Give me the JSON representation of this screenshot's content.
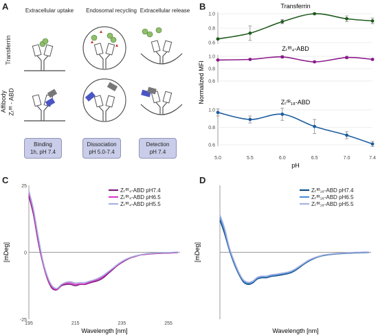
{
  "panel_a": {
    "label": "A",
    "col_headers": [
      "Extracellular uptake",
      "Endosomal recycling",
      "Extracellular release"
    ],
    "row_labels": {
      "transferrin": "Transferrin",
      "affibody_line1": "Affibody",
      "affibody_line2": "Zₜᶠᴿ - ABD"
    },
    "steps": [
      {
        "l1": "Binding",
        "l2": "1h, pH 7.4"
      },
      {
        "l1": "Dissociation",
        "l2": "pH 5.0-7.4"
      },
      {
        "l1": "Detection",
        "l2": "pH 7.4"
      }
    ],
    "colors": {
      "step_fill": "#c9cde9",
      "green_ball": "#8fbf6a",
      "protein_blue": "#4b55c4",
      "red_triangle": "#c0392b"
    }
  },
  "panel_b": {
    "label": "B"
  },
  "panel_c": {
    "label": "C"
  },
  "panel_d": {
    "label": "D"
  },
  "chart_data": [
    {
      "panel": "B",
      "type": "line",
      "ylabel": "Normalized MFI",
      "xlabel": "pH",
      "x_ticks": [
        "5.0",
        "5.5",
        "6.0",
        "6.5",
        "7.0",
        "7.4"
      ],
      "subplots": [
        {
          "title": "Transferrin",
          "color": "#1e5a1e",
          "x": [
            5.0,
            5.5,
            6.0,
            6.5,
            7.0,
            7.4
          ],
          "y": [
            0.65,
            0.73,
            0.89,
            1.0,
            0.93,
            0.9
          ],
          "err": [
            0.01,
            0.1,
            0.03,
            0.01,
            0.04,
            0.04
          ],
          "ylim": [
            0.6,
            1.0
          ],
          "y_ticks": [
            "1.0",
            "0.8",
            "0.6"
          ]
        },
        {
          "title": "Zₜᶠᴿ₄-ABD",
          "color": "#8b1a8b",
          "x": [
            5.0,
            5.5,
            6.0,
            6.5,
            7.0,
            7.4
          ],
          "y": [
            0.94,
            0.95,
            0.99,
            0.91,
            0.98,
            0.95
          ],
          "err": [
            0.01,
            0.01,
            0.02,
            0.01,
            0.02,
            0.01
          ],
          "ylim": [
            0.6,
            1.0
          ],
          "y_ticks": [
            "1.0",
            "0.8",
            "0.6"
          ]
        },
        {
          "title": "Zₜᶠᴿ₁₈-ABD",
          "color": "#1d5c9e",
          "x": [
            5.0,
            5.5,
            6.0,
            6.5,
            7.0,
            7.4
          ],
          "y": [
            0.97,
            0.89,
            0.95,
            0.81,
            0.71,
            0.61
          ],
          "err": [
            0.04,
            0.04,
            0.07,
            0.08,
            0.04,
            0.03
          ],
          "ylim": [
            0.6,
            1.0
          ],
          "y_ticks": [
            "1.0",
            "0.8",
            "0.6"
          ]
        }
      ]
    },
    {
      "panel": "C",
      "type": "line",
      "xlabel": "Wavelength [nm]",
      "ylabel": "[mDeg]",
      "xlim": [
        195,
        260
      ],
      "ylim": [
        -25,
        25
      ],
      "x_ticks": [
        "195",
        "215",
        "235",
        "255"
      ],
      "y_ticks": [
        "25",
        "0",
        "-25"
      ],
      "x": [
        195,
        197,
        199,
        201,
        203,
        205,
        207,
        209,
        211,
        213,
        215,
        217,
        219,
        221,
        223,
        225,
        227,
        229,
        231,
        233,
        235,
        237,
        239,
        241,
        243,
        245,
        247,
        249,
        251,
        253,
        255,
        257,
        259
      ],
      "series": [
        {
          "name": "Zₜᶠᴿ₄-ABD pH7.4",
          "color": "#7a1a7a",
          "values": [
            21,
            14,
            4,
            -4,
            -10,
            -13.5,
            -14,
            -12.5,
            -12,
            -12,
            -12.5,
            -12,
            -12,
            -11.5,
            -11,
            -10.5,
            -9.5,
            -8,
            -6.5,
            -5,
            -3.8,
            -2.8,
            -2,
            -1.5,
            -1,
            -0.8,
            -0.6,
            -0.5,
            -0.4,
            -0.3,
            -0.3,
            -0.2,
            -0.1
          ]
        },
        {
          "name": "Zₜᶠᴿ₄-ABD pH6.5",
          "color": "#d63cc7",
          "values": [
            22,
            15,
            5,
            -3.5,
            -9.5,
            -13,
            -13.8,
            -12.2,
            -11.6,
            -11.5,
            -12,
            -11.8,
            -11.8,
            -11.2,
            -10.6,
            -10,
            -9,
            -7.6,
            -6.2,
            -4.8,
            -3.6,
            -2.6,
            -1.9,
            -1.4,
            -1,
            -0.7,
            -0.5,
            -0.4,
            -0.3,
            -0.2,
            -0.2,
            -0.1,
            0
          ]
        },
        {
          "name": "Zₜᶠᴿ₄-ABD pH5.5",
          "color": "#a8b0e0",
          "values": [
            23,
            16,
            6,
            -3,
            -9,
            -12.5,
            -13.5,
            -12,
            -11.2,
            -11,
            -11.5,
            -11.3,
            -11.3,
            -10.8,
            -10.3,
            -9.6,
            -8.6,
            -7.3,
            -6,
            -4.6,
            -3.4,
            -2.5,
            -1.8,
            -1.3,
            -0.9,
            -0.6,
            -0.4,
            -0.3,
            -0.2,
            -0.1,
            -0.1,
            0,
            0.1
          ]
        }
      ]
    },
    {
      "panel": "D",
      "type": "line",
      "xlabel": "Wavelength [nm]",
      "ylabel": "[mDeg]",
      "xlim": [
        195,
        260
      ],
      "ylim": [
        -25,
        25
      ],
      "x": [
        195,
        197,
        199,
        201,
        203,
        205,
        207,
        209,
        211,
        213,
        215,
        217,
        219,
        221,
        223,
        225,
        227,
        229,
        231,
        233,
        235,
        237,
        239,
        241,
        243,
        245,
        247,
        249,
        251,
        253,
        255,
        257,
        259
      ],
      "series": [
        {
          "name": "Zₜᶠᴿ₁₈-ABD pH7.4",
          "color": "#0f4c81",
          "values": [
            12,
            7,
            1,
            -4,
            -8,
            -11,
            -12,
            -11.5,
            -10,
            -9.5,
            -9.5,
            -9,
            -8.8,
            -8.5,
            -8.2,
            -7.8,
            -7,
            -5.8,
            -4.5,
            -3.4,
            -2.5,
            -1.8,
            -1.3,
            -1,
            -0.8,
            -0.6,
            -0.5,
            -0.4,
            -0.3,
            -0.2,
            -0.2,
            -0.1,
            -0.1
          ]
        },
        {
          "name": "Zₜᶠᴿ₁₈-ABD pH6.5",
          "color": "#4b8fd6",
          "values": [
            13,
            8,
            1.5,
            -3.5,
            -7.6,
            -10.6,
            -11.6,
            -11.2,
            -9.7,
            -9.2,
            -9.2,
            -8.7,
            -8.5,
            -8.2,
            -7.9,
            -7.5,
            -6.7,
            -5.5,
            -4.3,
            -3.2,
            -2.3,
            -1.7,
            -1.2,
            -0.9,
            -0.7,
            -0.5,
            -0.4,
            -0.3,
            -0.2,
            -0.1,
            -0.1,
            0,
            0
          ]
        },
        {
          "name": "Zₜᶠᴿ₁₈-ABD pH5.5",
          "color": "#a8b0e0",
          "values": [
            14,
            9,
            2,
            -3,
            -7.2,
            -10.2,
            -11.2,
            -10.8,
            -9.4,
            -8.9,
            -8.9,
            -8.4,
            -8.2,
            -7.9,
            -7.6,
            -7.2,
            -6.4,
            -5.3,
            -4.1,
            -3,
            -2.2,
            -1.6,
            -1.1,
            -0.8,
            -0.6,
            -0.4,
            -0.3,
            -0.2,
            -0.1,
            0,
            0,
            0.1,
            0.1
          ]
        }
      ]
    }
  ]
}
